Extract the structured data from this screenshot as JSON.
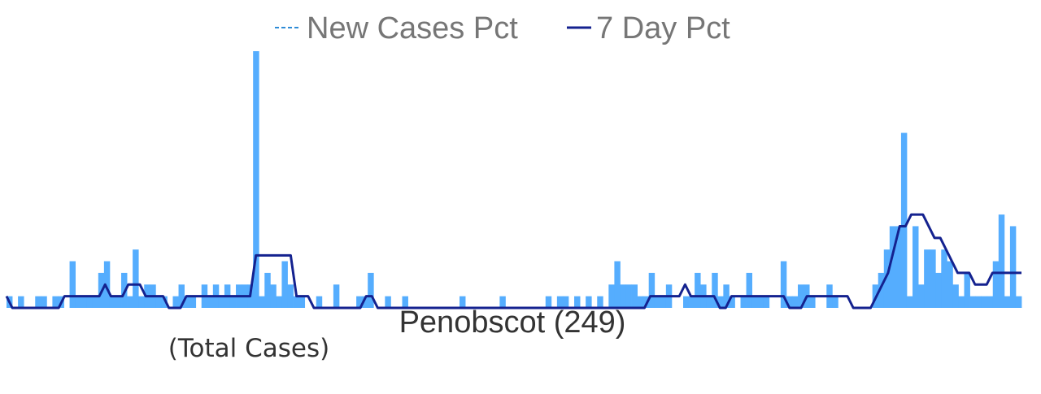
{
  "chart_data": {
    "type": "bar",
    "title": "Penobscot (249)",
    "subtitle": "(Total Cases)",
    "xlabel": "",
    "ylabel": "",
    "ylim": [
      0,
      22
    ],
    "grid": false,
    "legend": "top-center",
    "colors": {
      "bars": "#55adfe",
      "line": "#14228f",
      "legend_dash": "#2e8bd6",
      "text": "#333333",
      "legend_text": "#767676"
    },
    "series": [
      {
        "name": "New Cases Pct",
        "kind": "bar",
        "values": [
          1,
          0,
          1,
          0,
          0,
          1,
          1,
          0,
          1,
          1,
          0,
          4,
          1,
          1,
          1,
          1,
          3,
          4,
          1,
          1,
          3,
          1,
          5,
          1,
          2,
          2,
          1,
          1,
          0,
          1,
          2,
          1,
          1,
          0,
          2,
          1,
          2,
          1,
          2,
          1,
          2,
          2,
          2,
          22,
          1,
          3,
          2,
          1,
          4,
          2,
          1,
          1,
          0,
          0,
          1,
          0,
          0,
          2,
          0,
          0,
          0,
          1,
          1,
          3,
          0,
          0,
          1,
          0,
          0,
          1,
          0,
          0,
          0,
          0,
          0,
          0,
          0,
          0,
          0,
          1,
          0,
          0,
          0,
          0,
          0,
          0,
          1,
          0,
          0,
          0,
          0,
          0,
          0,
          0,
          1,
          0,
          1,
          1,
          0,
          1,
          0,
          1,
          0,
          1,
          0,
          2,
          4,
          2,
          2,
          2,
          1,
          1,
          3,
          1,
          1,
          2,
          0,
          0,
          1,
          1,
          3,
          2,
          1,
          3,
          1,
          2,
          1,
          0,
          1,
          3,
          1,
          1,
          1,
          0,
          0,
          4,
          1,
          1,
          2,
          2,
          1,
          0,
          0,
          2,
          1,
          0,
          0,
          0,
          0,
          0,
          0,
          2,
          3,
          5,
          7,
          7,
          15,
          1,
          7,
          2,
          5,
          5,
          3,
          5,
          4,
          2,
          1,
          3,
          1,
          1,
          1,
          1,
          4,
          8,
          1,
          7,
          1
        ]
      },
      {
        "name": "7 Day Pct",
        "kind": "line",
        "values": [
          1,
          0,
          0,
          0,
          0,
          0,
          0,
          0,
          0,
          0,
          1,
          1,
          1,
          1,
          1,
          1,
          1,
          2,
          1,
          1,
          1,
          2,
          2,
          2,
          1,
          1,
          1,
          1,
          0,
          0,
          0,
          1,
          1,
          1,
          1,
          1,
          1,
          1,
          1,
          1,
          1,
          1,
          1,
          4.5,
          4.5,
          4.5,
          4.5,
          4.5,
          4.5,
          4.5,
          1,
          1,
          1,
          0,
          0,
          0,
          0,
          0,
          0,
          0,
          0,
          0,
          1,
          1,
          0,
          0,
          0,
          0,
          0,
          0,
          0,
          0,
          0,
          0,
          0,
          0,
          0,
          0,
          0,
          0,
          0,
          0,
          0,
          0,
          0,
          0,
          0,
          0,
          0,
          0,
          0,
          0,
          0,
          0,
          0,
          0,
          0,
          0,
          0,
          0,
          0,
          0,
          0,
          0,
          0,
          0,
          0,
          0,
          0,
          0,
          0,
          1,
          1,
          1,
          1,
          1,
          1,
          2,
          1,
          1,
          1,
          1,
          1,
          0,
          0,
          1,
          1,
          1,
          1,
          1,
          1,
          1,
          1,
          1,
          1,
          0,
          0,
          0,
          1,
          1,
          1,
          1,
          1,
          1,
          1,
          1,
          0,
          0,
          0,
          0,
          1,
          2,
          3,
          5,
          7,
          7,
          8,
          8,
          8,
          7,
          6,
          6,
          5,
          4,
          3,
          3,
          3,
          2,
          2,
          2,
          3,
          3,
          3,
          3,
          3,
          3
        ]
      }
    ]
  }
}
